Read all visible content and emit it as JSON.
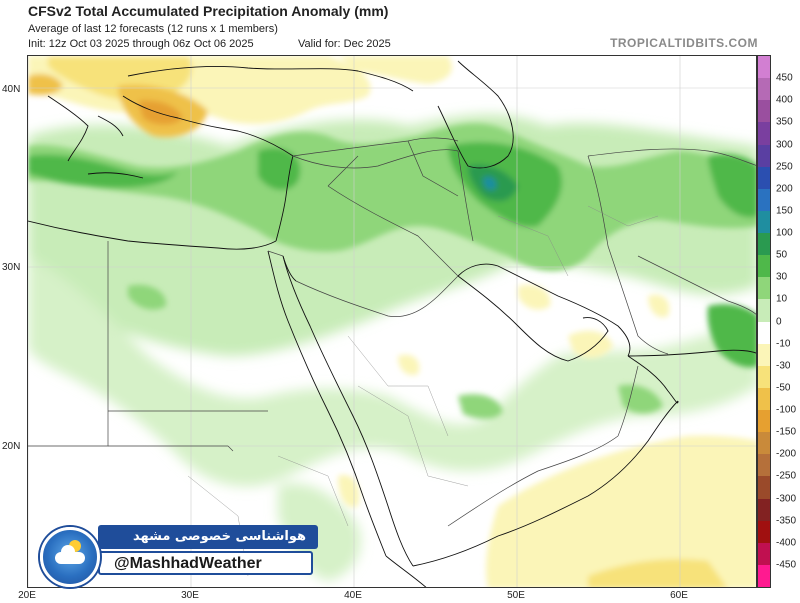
{
  "header": {
    "title": "CFSv2 Total Accumulated Precipitation Anomaly (mm)",
    "subtitle_1": "Average of last 12 forecasts (12 runs x 1 members)",
    "subtitle_2": "Init: 12z Oct 03 2025 through 06z Oct 06 2025",
    "valid": "Valid for: Dec 2025",
    "credit": "TROPICALTIDBITS.COM"
  },
  "axes": {
    "lat_labels": [
      "40N",
      "30N",
      "20N"
    ],
    "lon_labels": [
      "20E",
      "30E",
      "40E",
      "50E",
      "60E"
    ]
  },
  "colorbar": {
    "labels": [
      "450",
      "400",
      "350",
      "300",
      "250",
      "200",
      "150",
      "100",
      "50",
      "30",
      "10",
      "0",
      "-10",
      "-30",
      "-50",
      "-100",
      "-150",
      "-200",
      "-250",
      "-300",
      "-350",
      "-400",
      "-450"
    ],
    "colors": [
      "#d27fd2",
      "#b56ab5",
      "#9a4f9f",
      "#7a3f9f",
      "#5a3fa2",
      "#2b4fb0",
      "#2a72c0",
      "#1f8ea0",
      "#2a9a50",
      "#4fb84a",
      "#8fd67a",
      "#c8ecb8",
      "#ffffff",
      "#fbf5b8",
      "#f7e27a",
      "#efc14a",
      "#e6a030",
      "#c98a3a",
      "#b5703a",
      "#9a4a2a",
      "#822222",
      "#a01010",
      "#c01050",
      "#ff1a90"
    ]
  },
  "watermark": {
    "banner_text": "هواشناسی خصوصی مشهد",
    "handle": "@MashhadWeather",
    "logo": "weather-logo-icon"
  }
}
